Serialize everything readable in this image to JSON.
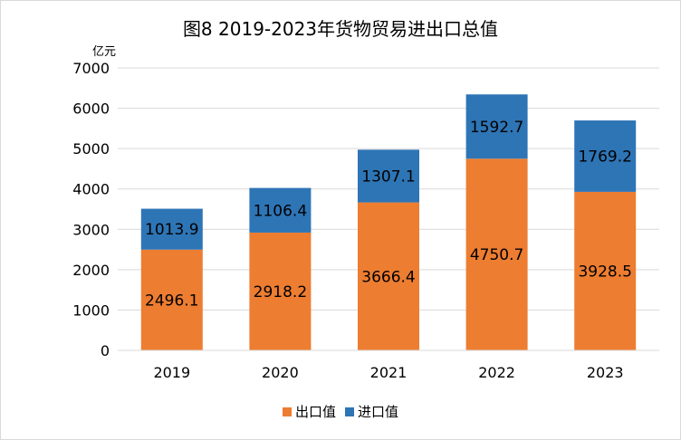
{
  "chart_data": {
    "type": "bar",
    "stacked": true,
    "title": "图8 2019-2023年货物贸易进出口总值",
    "unit_label": "亿元",
    "categories": [
      "2019",
      "2020",
      "2021",
      "2022",
      "2023"
    ],
    "series": [
      {
        "name": "出口值",
        "color": "#ed7d31",
        "values": [
          2496.1,
          2918.2,
          3666.4,
          4750.7,
          3928.5
        ]
      },
      {
        "name": "进口值",
        "color": "#2e75b6",
        "values": [
          1013.9,
          1106.4,
          1307.1,
          1592.7,
          1769.2
        ]
      }
    ],
    "ylim": [
      0,
      7000
    ],
    "yticks": [
      "0",
      "1000",
      "2000",
      "3000",
      "4000",
      "5000",
      "6000",
      "7000"
    ],
    "grid": true,
    "legend_position": "bottom"
  }
}
